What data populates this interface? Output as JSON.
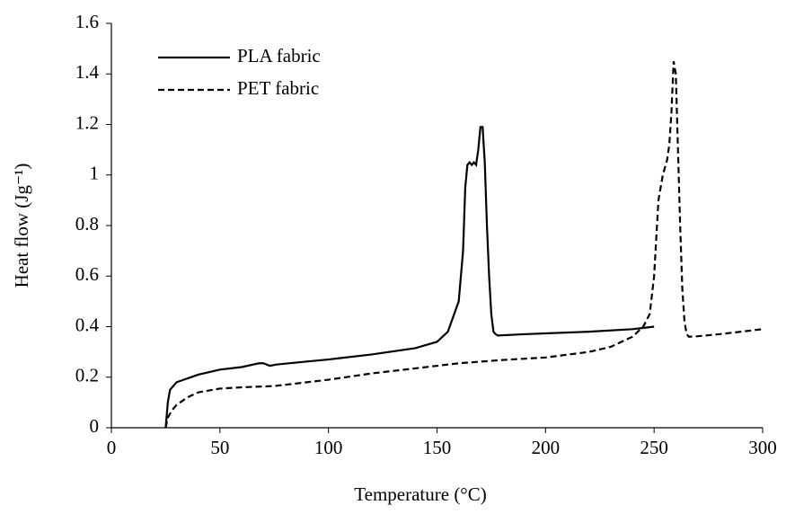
{
  "chart_data": {
    "type": "line",
    "xlabel": "Temperature (°C)",
    "ylabel": "Heat flow (Jg⁻¹)",
    "xlim": [
      0,
      300
    ],
    "xticks": [
      0,
      50,
      100,
      150,
      200,
      250,
      300
    ],
    "ylim": [
      0,
      1.6
    ],
    "yticks": [
      0,
      0.2,
      0.4,
      0.6,
      0.8,
      1,
      1.2,
      1.4,
      1.6
    ],
    "grid": false,
    "legend": "upper left",
    "series": [
      {
        "name": "PLA fabric",
        "color": "#000000",
        "linestyle": "solid",
        "x": [
          25,
          26,
          27,
          30,
          40,
          50,
          60,
          68,
          70,
          73,
          76,
          90,
          100,
          120,
          140,
          150,
          155,
          160,
          162,
          163,
          164,
          165,
          166,
          167,
          168,
          169,
          170,
          171,
          172,
          173,
          174,
          175,
          176,
          177,
          178,
          190,
          220,
          240,
          250
        ],
        "values": [
          0,
          0.1,
          0.15,
          0.18,
          0.21,
          0.23,
          0.24,
          0.255,
          0.255,
          0.245,
          0.25,
          0.262,
          0.27,
          0.29,
          0.315,
          0.34,
          0.38,
          0.5,
          0.7,
          0.95,
          1.04,
          1.05,
          1.04,
          1.05,
          1.04,
          1.1,
          1.19,
          1.19,
          1.05,
          0.8,
          0.6,
          0.45,
          0.38,
          0.37,
          0.365,
          0.37,
          0.38,
          0.39,
          0.4
        ]
      },
      {
        "name": "PET fabric",
        "color": "#000000",
        "linestyle": "dashed",
        "x": [
          25,
          26,
          28,
          30,
          35,
          40,
          50,
          60,
          75,
          90,
          100,
          120,
          140,
          160,
          180,
          200,
          220,
          230,
          240,
          245,
          248,
          250,
          252,
          254,
          256,
          257,
          258,
          259,
          260,
          261,
          262,
          263,
          264,
          265,
          266,
          270,
          280,
          300
        ],
        "values": [
          0,
          0.04,
          0.07,
          0.09,
          0.12,
          0.14,
          0.155,
          0.16,
          0.165,
          0.18,
          0.19,
          0.215,
          0.235,
          0.255,
          0.268,
          0.278,
          0.3,
          0.32,
          0.36,
          0.4,
          0.45,
          0.6,
          0.9,
          1.0,
          1.06,
          1.12,
          1.25,
          1.45,
          1.4,
          1.1,
          0.8,
          0.55,
          0.42,
          0.37,
          0.36,
          0.362,
          0.37,
          0.39
        ]
      }
    ]
  }
}
